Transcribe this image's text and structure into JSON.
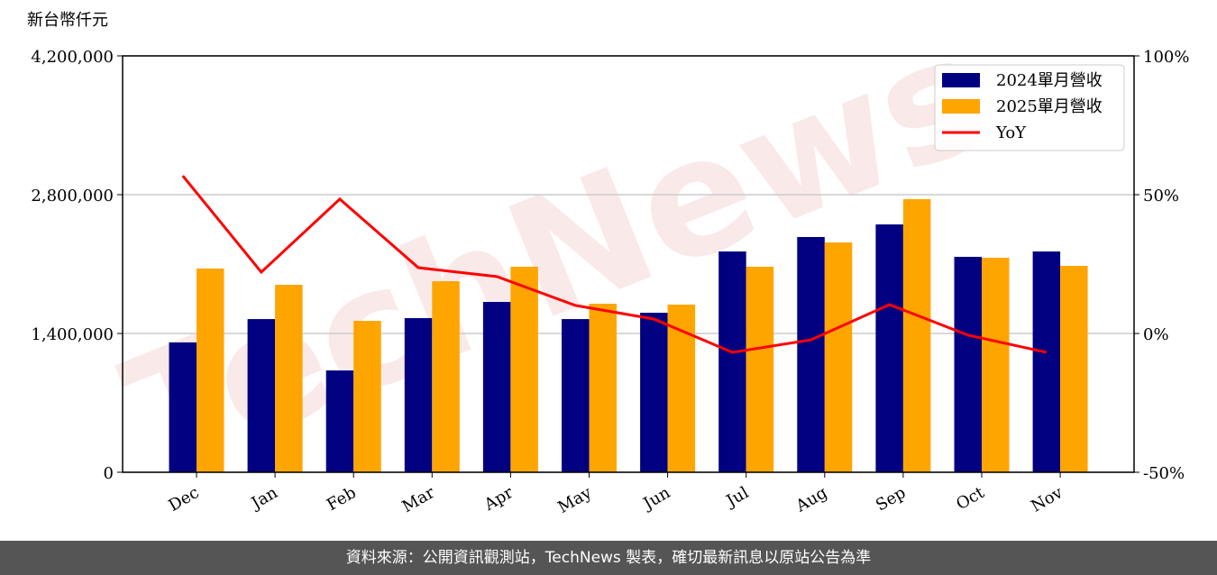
{
  "chart_data": {
    "type": "bar_line",
    "y_label": "新台幣仟元",
    "watermark": "TechNews",
    "categories": [
      "Dec",
      "Jan",
      "Feb",
      "Mar",
      "Apr",
      "May",
      "Jun",
      "Jul",
      "Aug",
      "Sep",
      "Oct",
      "Nov"
    ],
    "series": [
      {
        "name": "2024單月營收",
        "color": "#000080",
        "values": [
          1310000,
          1545000,
          1027000,
          1555000,
          1718000,
          1545000,
          1609000,
          2227000,
          2373000,
          2500000,
          2173000,
          2227000
        ]
      },
      {
        "name": "2025單月營收",
        "color": "#ffa500",
        "values": [
          2055000,
          1891000,
          1527000,
          1927000,
          2073000,
          1700000,
          1691000,
          2073000,
          2318000,
          2755000,
          2164000,
          2082000
        ]
      },
      {
        "name": "YoY",
        "color": "#ff0000",
        "axis": "y2",
        "values": [
          56.8,
          22.1,
          48.4,
          23.7,
          20.5,
          10.1,
          5.2,
          -6.8,
          -2.3,
          10.4,
          -0.6,
          -6.8
        ]
      }
    ],
    "ylim": [
      0,
      4200000
    ],
    "yticks": [
      0,
      {
        "value": 1400000,
        "label": "1,400,000"
      },
      {
        "value": 2800000,
        "label": "2,800,000"
      },
      {
        "value": 4200000,
        "label": "4,200,000"
      }
    ],
    "y2lim": [
      -50,
      100
    ],
    "y2ticks": [
      {
        "value": -50,
        "label": "-50%"
      },
      {
        "value": 0,
        "label": "0%"
      },
      {
        "value": 50,
        "label": "50%"
      },
      {
        "value": 100,
        "label": "100%"
      }
    ],
    "grid": true,
    "legend": "upper right",
    "footer": "資料來源：公開資訊觀測站，TechNews 製表，確切最新訊息以原站公告為準"
  }
}
